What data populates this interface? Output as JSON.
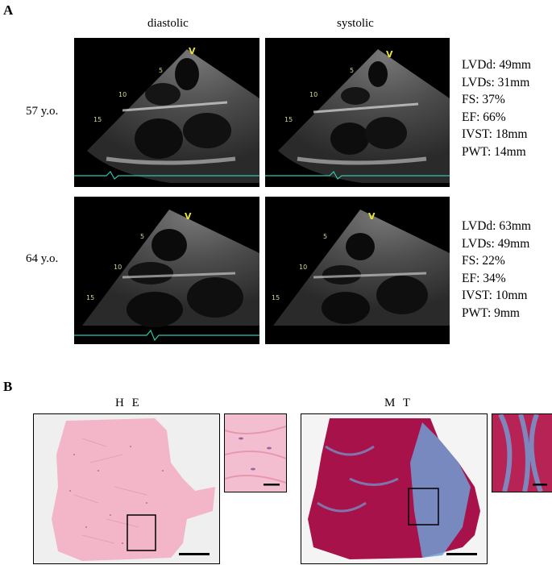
{
  "figure": {
    "panel_a_label": "A",
    "panel_b_label": "B",
    "col_diastolic": "diastolic",
    "col_systolic": "systolic",
    "rows": [
      {
        "age": "57 y.o.",
        "depth_marks": [
          "5",
          "10",
          "15"
        ],
        "probe_mark": "V",
        "measurements": [
          "LVDd: 49mm",
          "LVDs: 31mm",
          "FS: 37%",
          "EF: 66%",
          "IVST: 18mm",
          "PWT: 14mm"
        ]
      },
      {
        "age": "64 y.o.",
        "depth_marks": [
          "5",
          "10",
          "15"
        ],
        "probe_mark": "V",
        "measurements": [
          "LVDd: 63mm",
          "LVDs: 49mm",
          "FS: 22%",
          "EF: 34%",
          "IVST: 10mm",
          "PWT: 9mm"
        ]
      }
    ],
    "histology": {
      "he_title": "H E",
      "mt_title": "M T"
    },
    "colors": {
      "echo_bg": "#000000",
      "he_tissue": "#f2b6c8",
      "mt_tissue": "#a8124a",
      "mt_fibrosis": "#6f9fd4",
      "depth_mark": "#d8d890",
      "probe_mark": "#e6e23a"
    }
  }
}
